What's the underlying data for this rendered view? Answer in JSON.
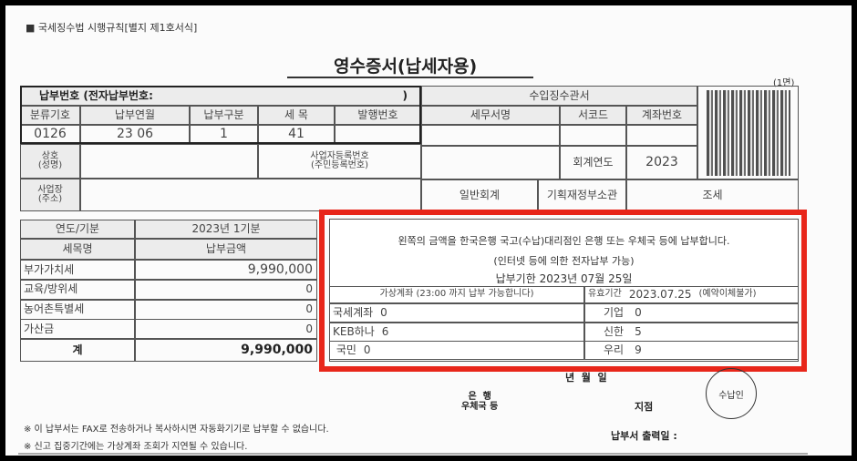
{
  "header_note": "■ 국세징수법 시행규칙[별지 제1호서식]",
  "title": "영수증서(납세자용)",
  "page_mark": "(1면)",
  "payment_no": {
    "label": "납부번호 (전자납부번호:",
    "close": ")"
  },
  "code_headers": [
    "분류기호",
    "납부연월",
    "납부구분",
    "세 목",
    "발행번호"
  ],
  "code_values": [
    "0126",
    "23 06",
    "1",
    "41",
    ""
  ],
  "business_name_label": "상호\n(성명)",
  "reg_no_label": "사업자등록번호\n(주민등록번호)",
  "address_label": "사업장\n(주소)",
  "office": {
    "title": "수입징수관서",
    "headers": [
      "세무서명",
      "서코드",
      "계좌번호"
    ],
    "fiscal_year_label": "회계연도",
    "fiscal_year": "2023",
    "account": "일반회계",
    "ministry": "기획재정부소관",
    "category": "조세"
  },
  "amounts": {
    "period_label": "연도/기분",
    "period": "2023년 1기분",
    "item_header": "세목명",
    "amount_header": "납부금액",
    "rows": [
      {
        "name": "부가가치세",
        "amount": "9,990,000"
      },
      {
        "name": "교육/방위세",
        "amount": "0"
      },
      {
        "name": "농어촌특별세",
        "amount": "0"
      },
      {
        "name": "가산금",
        "amount": "0"
      }
    ],
    "total_label": "계",
    "total": "9,990,000"
  },
  "notice": {
    "line1": "왼쪽의 금액을 한국은행 국고(수납)대리점인 은행 또는 우체국 등에 납부합니다.",
    "line2": "(인터넷 등에 의한 전자납부 가능)",
    "deadline": "납부기한  2023년 07월 25일",
    "virtual_label": "가상계좌 (23:00 까지 납부 가능합니다)",
    "valid_label": "유효기간",
    "valid_date": "2023.07.25",
    "valid_note": "(예약이체불가)",
    "left_banks": [
      {
        "name": "국세계좌",
        "value": "0"
      },
      {
        "name": "KEB하나",
        "value": "6"
      },
      {
        "name": " 국민",
        "value": "0"
      }
    ],
    "right_banks": [
      {
        "name": "기업",
        "value": "0"
      },
      {
        "name": "신한",
        "value": "5"
      },
      {
        "name": "우리",
        "value": "9"
      }
    ]
  },
  "highlight_color": "#e8261a",
  "date_line": "년  월  일",
  "bank_label": "은  행\n우체국 등",
  "branch_label": "지점",
  "stamp_label": "수납인",
  "notes": [
    "※ 이 납부서는 FAX로 전송하거나 복사하시면 자동화기기로 납부할 수 없습니다.",
    "※ 신고 집중기간에는 가상계좌 조회가 지연될 수 있습니다."
  ],
  "print_date_label": "납부서 출력일 :"
}
